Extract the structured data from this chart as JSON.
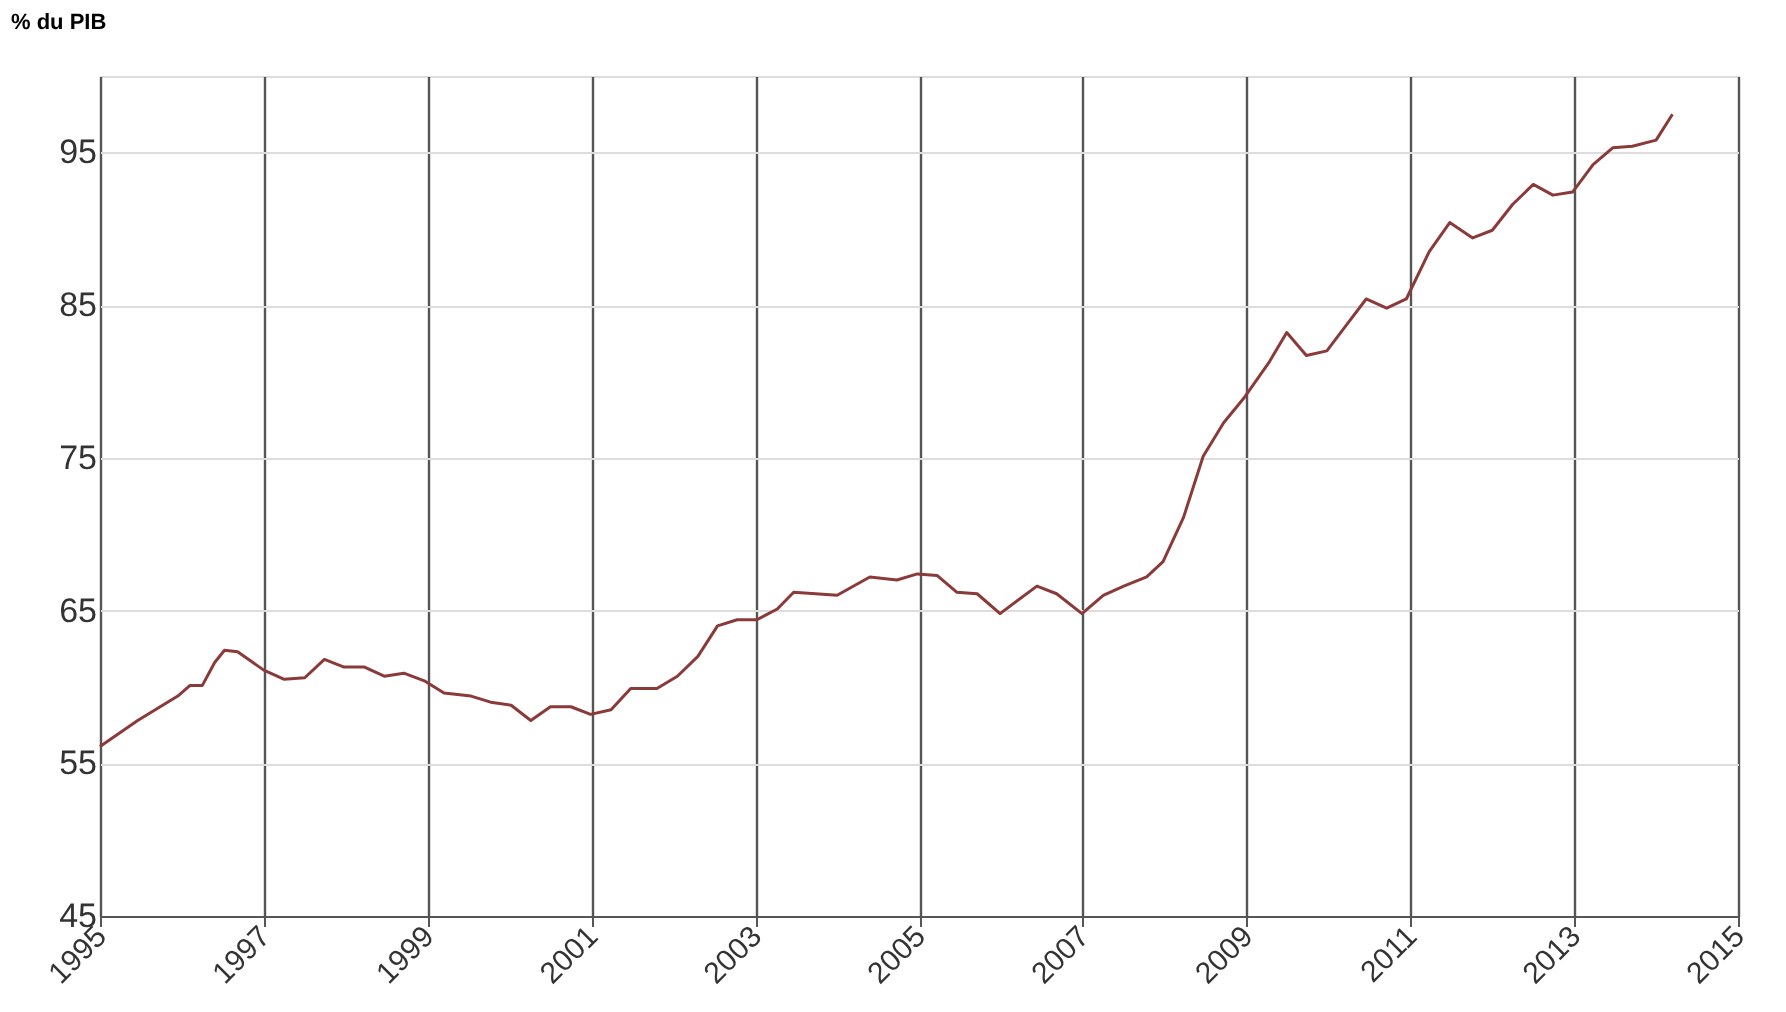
{
  "chart_data": {
    "type": "line",
    "ylabel": "% du PIB",
    "x": [
      1995.0,
      1995.46,
      1995.95,
      1996.1,
      1996.25,
      1996.4,
      1996.52,
      1996.68,
      1997.0,
      1997.25,
      1997.5,
      1997.74,
      1997.98,
      1998.23,
      1998.47,
      1998.71,
      1998.96,
      1999.2,
      1999.53,
      1999.77,
      2000.02,
      2000.26,
      2000.5,
      2000.75,
      2000.99,
      2001.24,
      2001.48,
      2001.8,
      2002.05,
      2002.3,
      2002.54,
      2002.78,
      2003.02,
      2003.27,
      2003.47,
      2004.0,
      2004.4,
      2004.73,
      2004.98,
      2005.22,
      2005.46,
      2005.71,
      2005.99,
      2006.44,
      2006.68,
      2006.99,
      2007.25,
      2007.5,
      2007.78,
      2007.98,
      2008.23,
      2008.47,
      2008.72,
      2008.98,
      2009.28,
      2009.49,
      2009.73,
      2009.98,
      2010.22,
      2010.46,
      2010.71,
      2010.95,
      2011.23,
      2011.48,
      2011.76,
      2012.0,
      2012.25,
      2012.5,
      2012.74,
      2012.98,
      2013.23,
      2013.47,
      2013.71,
      2014.0,
      2014.2
    ],
    "series": [
      {
        "color": "#8b3a3a",
        "values": [
          56.1,
          57.8,
          59.4,
          60.1,
          60.1,
          61.6,
          62.4,
          62.3,
          61.1,
          60.5,
          60.6,
          61.8,
          61.3,
          61.3,
          60.7,
          60.9,
          60.4,
          59.6,
          59.4,
          59.0,
          58.8,
          57.8,
          58.7,
          58.7,
          58.2,
          58.5,
          59.9,
          59.9,
          60.7,
          62.0,
          64.0,
          64.4,
          64.4,
          65.1,
          66.2,
          66.0,
          67.2,
          67.0,
          67.4,
          67.3,
          66.2,
          66.1,
          64.8,
          66.6,
          66.1,
          64.8,
          66.0,
          66.6,
          67.2,
          68.2,
          71.1,
          75.1,
          77.3,
          79.0,
          81.3,
          83.2,
          81.7,
          82.0,
          83.7,
          85.4,
          84.8,
          85.4,
          88.5,
          90.4,
          89.4,
          89.9,
          91.6,
          92.9,
          92.2,
          92.4,
          94.2,
          95.3,
          95.4,
          95.8,
          97.5
        ]
      }
    ],
    "xlim": [
      1995,
      2015
    ],
    "xticks": [
      1995,
      1997,
      1999,
      2001,
      2003,
      2005,
      2007,
      2009,
      2011,
      2013,
      2015
    ],
    "ylim": [
      45,
      100
    ],
    "yticks": [
      45,
      55,
      65,
      75,
      85,
      95
    ],
    "grid": true,
    "marker": "none",
    "line_style": "solid"
  }
}
